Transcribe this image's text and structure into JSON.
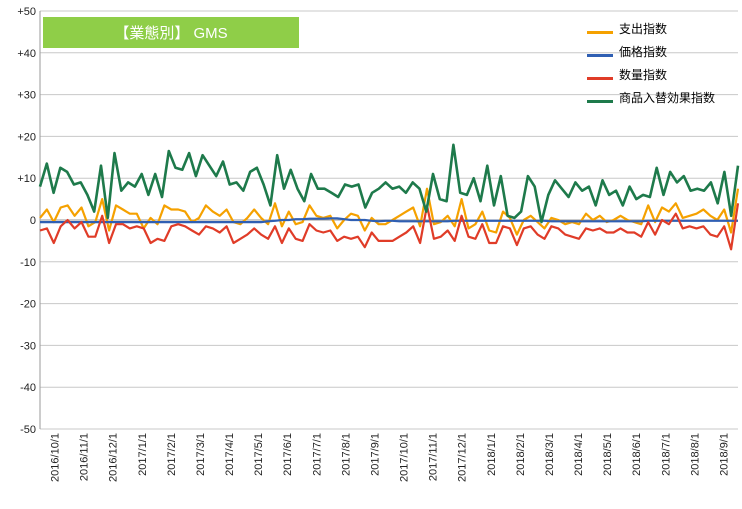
{
  "chart_data": {
    "type": "line",
    "title": "【業態別】 GMS",
    "title_bg": "#8fce48",
    "ylim": [
      -50,
      50
    ],
    "y_ticks": [
      "+50",
      "+40",
      "+30",
      "+20",
      "+10",
      "0",
      "-10",
      "-20",
      "-30",
      "-40",
      "-50"
    ],
    "y_tick_values": [
      50,
      40,
      30,
      20,
      10,
      0,
      -10,
      -20,
      -30,
      -40,
      -50
    ],
    "x_labels": [
      "2016/10/1",
      "2016/11/1",
      "2016/12/1",
      "2017/1/1",
      "2017/2/1",
      "2017/3/1",
      "2017/4/1",
      "2017/5/1",
      "2017/6/1",
      "2017/7/1",
      "2017/8/1",
      "2017/9/1",
      "2017/10/1",
      "2017/11/1",
      "2017/12/1",
      "2018/1/1",
      "2018/2/1",
      "2018/3/1",
      "2018/4/1",
      "2018/5/1",
      "2018/6/1",
      "2018/7/1",
      "2018/8/1",
      "2018/9/1"
    ],
    "legend_position": "top-right",
    "grid": true,
    "series": [
      {
        "name": "支出指数",
        "color": "#f5a100",
        "values": [
          0.5,
          2.5,
          -0.5,
          3,
          3.5,
          1,
          3,
          -1.5,
          -0.5,
          5,
          -2.5,
          3.5,
          2.5,
          1.5,
          1.5,
          -2,
          0.5,
          -1,
          3.5,
          2.5,
          2.5,
          2,
          -0.5,
          0.5,
          3.5,
          2,
          1,
          2.5,
          -0.5,
          -1,
          0.5,
          2.5,
          0.5,
          -1,
          4,
          -1.5,
          2,
          -1,
          -0.5,
          3.5,
          1,
          0.5,
          1,
          -2,
          0,
          1.5,
          1,
          -2.5,
          0.5,
          -1,
          -1,
          0,
          1,
          2,
          3,
          -1.5,
          7.5,
          -1,
          -0.5,
          1,
          -1.5,
          5,
          -2,
          -1,
          2,
          -2.5,
          -3,
          2,
          0.5,
          -3.5,
          0,
          1,
          -0.5,
          -2,
          0.5,
          0,
          -1,
          -0.5,
          -1,
          1.5,
          0,
          1,
          -0.5,
          0,
          1,
          0,
          -0.5,
          -1,
          3.5,
          -0.5,
          3,
          2,
          4,
          0.5,
          1,
          1.5,
          2.5,
          1,
          0,
          2.5,
          -3,
          7.5
        ],
        "width": 2.2
      },
      {
        "name": "価格指数",
        "color": "#2f5fb3",
        "values": [
          -0.5,
          -0.5,
          -0.5,
          -0.5,
          -0.5,
          -0.5,
          -0.5,
          -0.5,
          -0.5,
          -0.5,
          -0.5,
          -0.5,
          -0.5,
          -0.5,
          -0.5,
          -0.5,
          -0.5,
          -0.5,
          -0.5,
          -0.5,
          -0.5,
          -0.5,
          -0.5,
          -0.5,
          -0.5,
          -0.5,
          -0.5,
          -0.5,
          -0.5,
          -0.5,
          -0.5,
          -0.5,
          -0.5,
          -0.3,
          -0.2,
          0,
          0,
          0.2,
          0.2,
          0.3,
          0.3,
          0.3,
          0.4,
          0.4,
          0.2,
          0,
          0,
          0,
          -0.2,
          -0.3,
          -0.2,
          -0.2,
          -0.3,
          -0.3,
          -0.3,
          -0.3,
          -0.3,
          -0.3,
          -0.3,
          -0.3,
          -0.2,
          -0.2,
          -0.2,
          -0.2,
          -0.2,
          -0.2,
          -0.2,
          -0.2,
          -0.2,
          -0.2,
          -0.2,
          -0.2,
          -0.2,
          -0.2,
          -0.3,
          -0.3,
          -0.3,
          -0.3,
          -0.3,
          -0.3,
          -0.3,
          -0.3,
          -0.3,
          -0.3,
          -0.3,
          -0.3,
          -0.3,
          -0.3,
          -0.2,
          -0.2,
          -0.2,
          -0.2,
          -0.2,
          -0.2,
          -0.2,
          -0.2,
          -0.2,
          -0.2,
          -0.2,
          -0.2,
          -0.2,
          -0.2
        ],
        "width": 2.2
      },
      {
        "name": "数量指数",
        "color": "#e03c28",
        "values": [
          -2.5,
          -2,
          -5.5,
          -1.5,
          0,
          -2,
          -0.5,
          -4,
          -4,
          1,
          -5.5,
          -1,
          -1,
          -2,
          -1.5,
          -2,
          -5.5,
          -4.5,
          -5,
          -1.5,
          -1,
          -1.5,
          -2.5,
          -3.5,
          -1.5,
          -2,
          -3,
          -1.5,
          -5.5,
          -4.5,
          -3.5,
          -2,
          -3.5,
          -4.5,
          -1.5,
          -5.5,
          -2,
          -4.5,
          -5,
          -1,
          -2.5,
          -3,
          -2.5,
          -5,
          -4,
          -4.5,
          -4,
          -6.5,
          -3,
          -5,
          -5,
          -5,
          -4,
          -3,
          -1.5,
          -5.5,
          3.5,
          -4.5,
          -4,
          -2.5,
          -5,
          1,
          -4,
          -4.5,
          -1,
          -5.5,
          -5.5,
          -1.5,
          -2,
          -6,
          -2,
          -1.5,
          -3.5,
          -4.5,
          -1.5,
          -2,
          -3.5,
          -4,
          -4.5,
          -2,
          -2.5,
          -2,
          -3,
          -3,
          -2,
          -3,
          -3,
          -4,
          -0.5,
          -3.5,
          0,
          -1,
          1.5,
          -2,
          -1.5,
          -2,
          -1.5,
          -3.5,
          -4,
          -1.5,
          -7,
          4
        ],
        "width": 2.2
      },
      {
        "name": "商品入替効果指数",
        "color": "#1e7a4b",
        "values": [
          8,
          13.5,
          6.5,
          12.5,
          11.5,
          8.5,
          9,
          6,
          2,
          13,
          0.5,
          16,
          7,
          9,
          8,
          11,
          6,
          11,
          5.5,
          16.5,
          12.5,
          12,
          16,
          10.5,
          15.5,
          13,
          10.5,
          14,
          8.5,
          9,
          7,
          11.5,
          12.5,
          8.5,
          3.5,
          15.5,
          7.5,
          12,
          7.5,
          4.5,
          11,
          7.5,
          7.5,
          6.5,
          5.5,
          8.5,
          8,
          8.5,
          3,
          6.5,
          7.5,
          9,
          7.5,
          8,
          6.5,
          9,
          7.5,
          2,
          11,
          5,
          4.5,
          18,
          6.5,
          6,
          10,
          4.5,
          13,
          3.5,
          10.5,
          1,
          0.5,
          2,
          10.5,
          8,
          -0.5,
          6,
          9.5,
          7.5,
          5.5,
          9,
          7,
          8,
          3.5,
          9.5,
          6,
          7,
          3.5,
          8,
          5,
          6,
          5.5,
          12.5,
          6,
          11.5,
          9,
          10.5,
          7,
          7.5,
          7,
          9,
          4,
          11.5,
          1,
          13
        ],
        "width": 2.6
      }
    ]
  }
}
